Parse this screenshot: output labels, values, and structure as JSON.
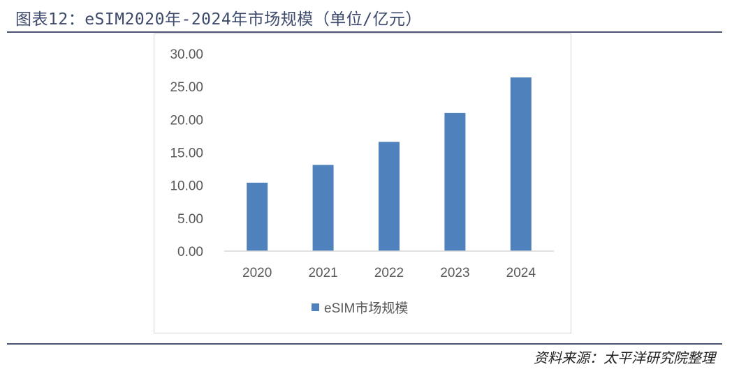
{
  "header": {
    "title": "图表12：eSIM2020年-2024年市场规模（单位/亿元）"
  },
  "footer": {
    "source": "资料来源：太平洋研究院整理"
  },
  "chart_data": {
    "type": "bar",
    "categories": [
      "2020",
      "2021",
      "2022",
      "2023",
      "2024"
    ],
    "series": [
      {
        "name": "eSIM市场规模",
        "values": [
          10.4,
          13.1,
          16.6,
          21.0,
          26.4
        ],
        "color": "#4f81bd"
      }
    ],
    "title": "",
    "xlabel": "",
    "ylabel": "",
    "ylim": [
      0,
      30
    ],
    "yticks": [
      "0.00",
      "5.00",
      "10.00",
      "15.00",
      "20.00",
      "25.00",
      "30.00"
    ],
    "grid": false,
    "legend_position": "bottom"
  }
}
